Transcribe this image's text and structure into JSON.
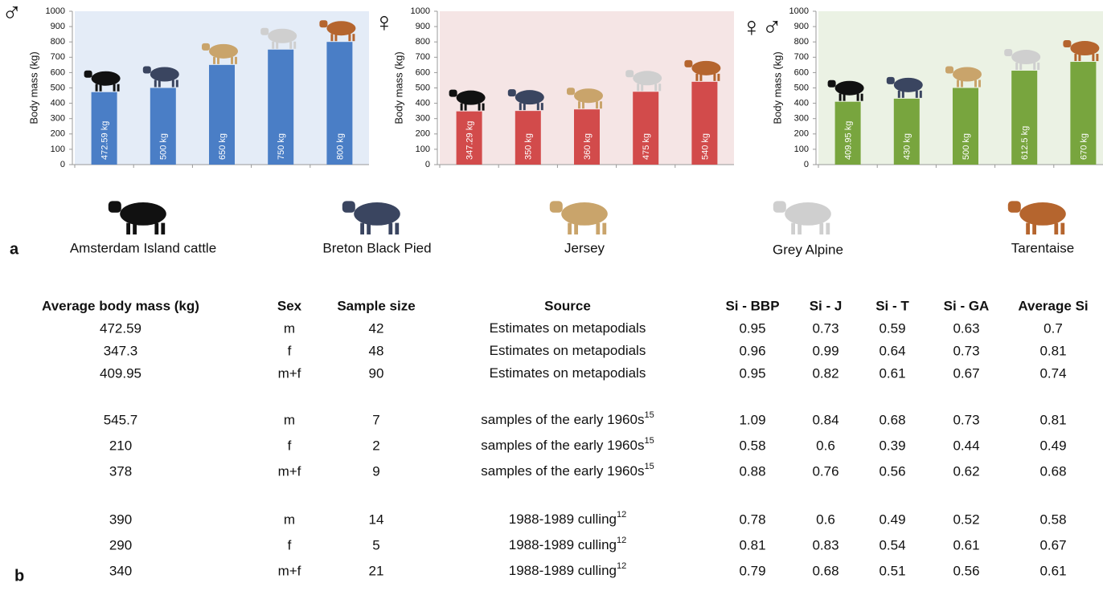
{
  "chart_data": [
    {
      "type": "bar",
      "title": "♂",
      "ylabel": "Body mass (kg)",
      "color": "#4a7ec6",
      "background": "#e4ecf7",
      "values": [
        472.59,
        500,
        650,
        750,
        800
      ],
      "value_labels": [
        "472.59 kg",
        "500 kg",
        "650 kg",
        "750 kg",
        "800 kg"
      ],
      "ylim": [
        0,
        1000
      ],
      "yticks": [
        0,
        100,
        200,
        300,
        400,
        500,
        600,
        700,
        800,
        900,
        1000
      ]
    },
    {
      "type": "bar",
      "title": "♀",
      "ylabel": "Body mass (kg)",
      "color": "#d24b4b",
      "background": "#f5e5e5",
      "values": [
        347.29,
        350,
        360,
        475,
        540
      ],
      "value_labels": [
        "347.29 kg",
        "350 kg",
        "360 kg",
        "475 kg",
        "540 kg"
      ],
      "ylim": [
        0,
        1000
      ],
      "yticks": [
        0,
        100,
        200,
        300,
        400,
        500,
        600,
        700,
        800,
        900,
        1000
      ]
    },
    {
      "type": "bar",
      "title": "♀♂",
      "ylabel": "Body mass (kg)",
      "color": "#78a53e",
      "background": "#ebf2e4",
      "values": [
        409.95,
        430,
        500,
        612.5,
        670
      ],
      "value_labels": [
        "409.95 kg",
        "430 kg",
        "500 kg",
        "612.5 kg",
        "670 kg"
      ],
      "ylim": [
        0,
        1000
      ],
      "yticks": [
        0,
        100,
        200,
        300,
        400,
        500,
        600,
        700,
        800,
        900,
        1000
      ]
    }
  ],
  "breeds": [
    "Amsterdam Island cattle",
    "Breton Black Pied",
    "Jersey",
    "Grey Alpine",
    "Tarentaise"
  ],
  "panels": [
    "a",
    "b"
  ],
  "table": {
    "header": [
      "Average body mass (kg)",
      "Sex",
      "Sample size",
      "Source",
      "Si - BBP",
      "Si - J",
      "Si - T",
      "Si - GA",
      "Average Si"
    ],
    "rows": [
      [
        472.59,
        "m",
        42,
        {
          "text": "Estimates on metapodials"
        },
        0.95,
        0.73,
        0.59,
        0.63,
        0.7
      ],
      [
        347.3,
        "f",
        48,
        {
          "text": "Estimates on metapodials"
        },
        0.96,
        0.99,
        0.64,
        0.73,
        0.81
      ],
      [
        409.95,
        "m+f",
        90,
        {
          "text": "Estimates on metapodials"
        },
        0.95,
        0.82,
        0.61,
        0.67,
        0.74
      ],
      [
        545.7,
        "m",
        7,
        {
          "text": "samples of the early 1960s",
          "sup": "15"
        },
        1.09,
        0.84,
        0.68,
        0.73,
        0.81
      ],
      [
        210,
        "f",
        2,
        {
          "text": "samples of the early 1960s",
          "sup": "15"
        },
        0.58,
        0.6,
        0.39,
        0.44,
        0.49
      ],
      [
        378,
        "m+f",
        9,
        {
          "text": "samples of the early 1960s",
          "sup": "15"
        },
        0.88,
        0.76,
        0.56,
        0.62,
        0.68
      ],
      [
        390,
        "m",
        14,
        {
          "text": "1988-1989 culling",
          "sup": "12"
        },
        0.78,
        0.6,
        0.49,
        0.52,
        0.58
      ],
      [
        290,
        "f",
        5,
        {
          "text": "1988-1989 culling",
          "sup": "12"
        },
        0.81,
        0.83,
        0.54,
        0.61,
        0.67
      ],
      [
        340,
        "m+f",
        21,
        {
          "text": "1988-1989 culling",
          "sup": "12"
        },
        0.79,
        0.68,
        0.51,
        0.56,
        0.61
      ]
    ]
  }
}
